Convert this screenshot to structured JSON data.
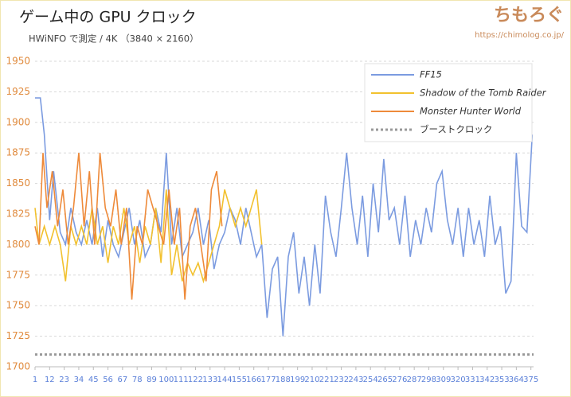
{
  "chart_data": {
    "type": "line",
    "title": "ゲーム中の GPU クロック",
    "subtitle": "HWiNFO で測定 / 4K （3840 × 2160）",
    "watermark": "ちもろぐ",
    "url": "https://chimolog.co.jp/",
    "xlim": [
      1,
      377
    ],
    "xticks": [
      1,
      12,
      23,
      34,
      45,
      56,
      67,
      78,
      89,
      100,
      111,
      122,
      133,
      144,
      155,
      166,
      177,
      188,
      199,
      210,
      221,
      232,
      243,
      254,
      265,
      276,
      287,
      298,
      309,
      320,
      331,
      342,
      353,
      364,
      375
    ],
    "ylim": [
      1700,
      1950
    ],
    "yticks": [
      1700,
      1725,
      1750,
      1775,
      1800,
      1825,
      1850,
      1875,
      1900,
      1925,
      1950
    ],
    "grid": true,
    "legend": "upper right",
    "series": [
      {
        "name": "FF15",
        "color": "#7b9be0",
        "x": [
          1,
          5,
          8,
          12,
          15,
          20,
          24,
          28,
          32,
          36,
          40,
          44,
          48,
          52,
          56,
          60,
          64,
          68,
          72,
          76,
          80,
          84,
          88,
          92,
          96,
          100,
          104,
          108,
          112,
          116,
          120,
          124,
          128,
          132,
          136,
          140,
          144,
          148,
          152,
          156,
          160,
          164,
          168,
          172,
          176,
          180,
          184,
          188,
          192,
          196,
          200,
          204,
          208,
          212,
          216,
          220,
          224,
          228,
          232,
          236,
          240,
          244,
          248,
          252,
          256,
          260,
          264,
          268,
          272,
          276,
          280,
          284,
          288,
          292,
          296,
          300,
          304,
          308,
          312,
          316,
          320,
          324,
          328,
          332,
          336,
          340,
          344,
          348,
          352,
          356,
          360,
          364,
          368,
          372,
          376
        ],
        "values": [
          1920,
          1920,
          1890,
          1820,
          1860,
          1810,
          1800,
          1830,
          1810,
          1800,
          1820,
          1800,
          1830,
          1790,
          1820,
          1800,
          1790,
          1810,
          1830,
          1800,
          1820,
          1790,
          1800,
          1830,
          1810,
          1875,
          1800,
          1830,
          1790,
          1800,
          1810,
          1830,
          1800,
          1820,
          1780,
          1800,
          1810,
          1830,
          1820,
          1800,
          1830,
          1810,
          1790,
          1800,
          1740,
          1780,
          1790,
          1725,
          1790,
          1810,
          1760,
          1790,
          1750,
          1800,
          1760,
          1840,
          1810,
          1790,
          1830,
          1875,
          1830,
          1800,
          1840,
          1790,
          1850,
          1810,
          1870,
          1820,
          1830,
          1800,
          1840,
          1790,
          1820,
          1800,
          1830,
          1810,
          1850,
          1860,
          1820,
          1800,
          1830,
          1790,
          1830,
          1800,
          1820,
          1790,
          1840,
          1800,
          1815,
          1760,
          1770,
          1875,
          1815,
          1810,
          1890
        ]
      },
      {
        "name": "Shadow of the Tomb Raider",
        "color": "#f2c12e",
        "x": [
          1,
          4,
          8,
          12,
          16,
          20,
          24,
          28,
          32,
          36,
          40,
          44,
          48,
          52,
          56,
          60,
          64,
          68,
          72,
          76,
          80,
          84,
          88,
          92,
          96,
          100,
          104,
          108,
          112,
          116,
          120,
          124,
          128,
          132,
          136,
          140,
          144,
          148,
          152,
          156,
          160,
          164,
          168,
          172
        ],
        "values": [
          1830,
          1800,
          1815,
          1800,
          1815,
          1800,
          1770,
          1815,
          1800,
          1815,
          1800,
          1830,
          1800,
          1815,
          1785,
          1815,
          1800,
          1830,
          1800,
          1815,
          1785,
          1815,
          1800,
          1830,
          1785,
          1845,
          1775,
          1800,
          1770,
          1785,
          1775,
          1785,
          1770,
          1785,
          1800,
          1815,
          1845,
          1830,
          1815,
          1830,
          1815,
          1830,
          1845,
          1800
        ]
      },
      {
        "name": "Monster Hunter World",
        "color": "#ee8a3a",
        "x": [
          1,
          4,
          7,
          10,
          14,
          18,
          22,
          26,
          30,
          34,
          38,
          42,
          46,
          50,
          54,
          58,
          62,
          66,
          70,
          74,
          78,
          82,
          86,
          90,
          94,
          98,
          102,
          106,
          110,
          114,
          118,
          122,
          126,
          130,
          134,
          138,
          142
        ],
        "values": [
          1815,
          1800,
          1875,
          1830,
          1860,
          1815,
          1845,
          1800,
          1830,
          1875,
          1815,
          1860,
          1800,
          1875,
          1830,
          1815,
          1845,
          1800,
          1830,
          1755,
          1815,
          1800,
          1845,
          1830,
          1815,
          1800,
          1845,
          1800,
          1830,
          1755,
          1815,
          1830,
          1800,
          1770,
          1845,
          1860,
          1815
        ]
      },
      {
        "name": "ブーストクロック",
        "color": "#999999",
        "dotted": true,
        "x": [
          1,
          377
        ],
        "values": [
          1710,
          1710
        ]
      }
    ]
  }
}
